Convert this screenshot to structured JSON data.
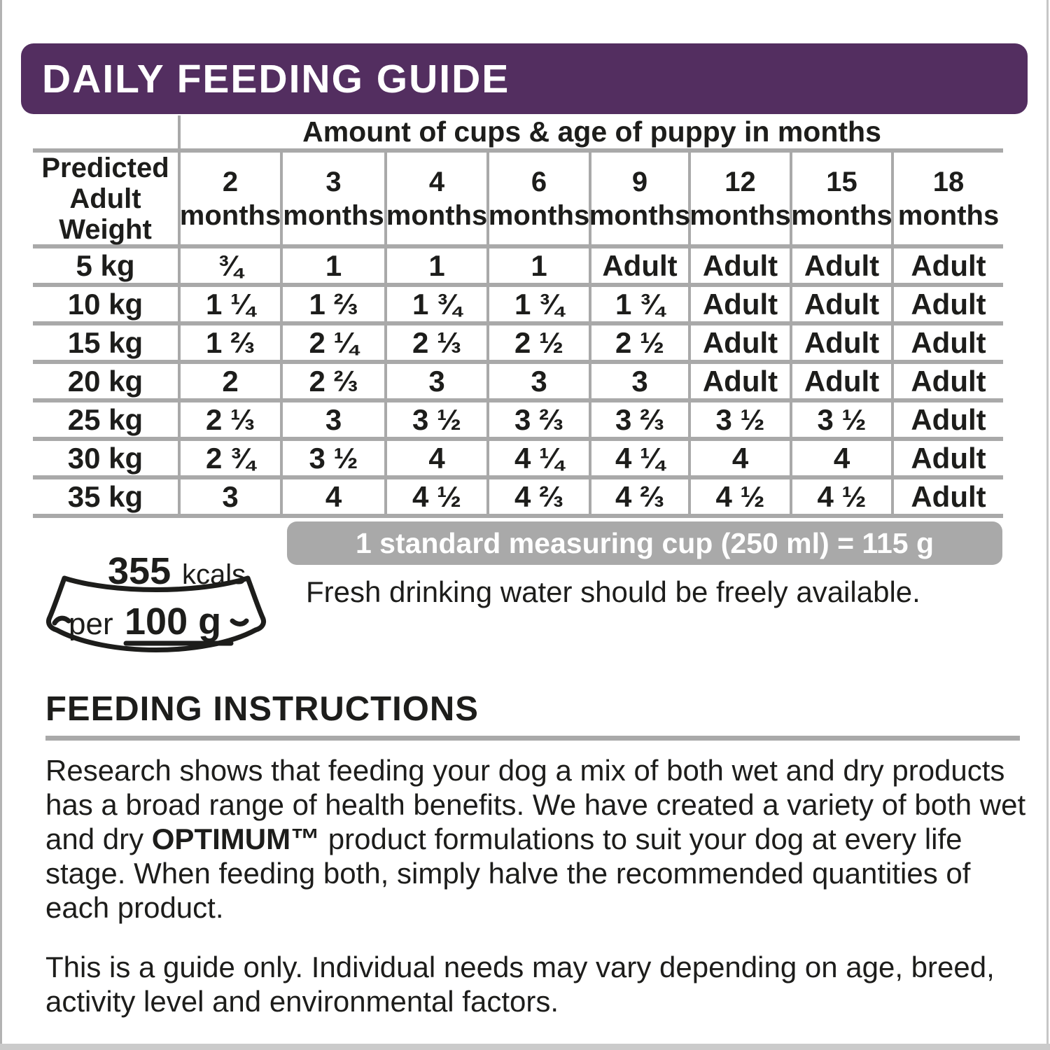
{
  "banner": {
    "title": "DAILY FEEDING GUIDE",
    "bg_color": "#532e60"
  },
  "table": {
    "span_header": "Amount of cups & age of puppy in months",
    "corner_header": "Predicted\nAdult\nWeight",
    "age_columns": [
      "2\nmonths",
      "3\nmonths",
      "4\nmonths",
      "6\nmonths",
      "9\nmonths",
      "12\nmonths",
      "15\nmonths",
      "18\nmonths"
    ],
    "rows": [
      {
        "weight": "5 kg",
        "values": [
          "¾",
          "1",
          "1",
          "1",
          "Adult",
          "Adult",
          "Adult",
          "Adult"
        ]
      },
      {
        "weight": "10 kg",
        "values": [
          "1 ¼",
          "1 ⅔",
          "1 ¾",
          "1 ¾",
          "1 ¾",
          "Adult",
          "Adult",
          "Adult"
        ]
      },
      {
        "weight": "15 kg",
        "values": [
          "1 ⅔",
          "2 ¼",
          "2 ⅓",
          "2 ½",
          "2 ½",
          "Adult",
          "Adult",
          "Adult"
        ]
      },
      {
        "weight": "20 kg",
        "values": [
          "2",
          "2 ⅔",
          "3",
          "3",
          "3",
          "Adult",
          "Adult",
          "Adult"
        ]
      },
      {
        "weight": "25 kg",
        "values": [
          "2 ⅓",
          "3",
          "3 ½",
          "3 ⅔",
          "3 ⅔",
          "3 ½",
          "3 ½",
          "Adult"
        ]
      },
      {
        "weight": "30 kg",
        "values": [
          "2 ¾",
          "3 ½",
          "4",
          "4 ¼",
          "4 ¼",
          "4",
          "4",
          "Adult"
        ]
      },
      {
        "weight": "35 kg",
        "values": [
          "3",
          "4",
          "4 ½",
          "4 ⅔",
          "4 ⅔",
          "4 ½",
          "4 ½",
          "Adult"
        ]
      }
    ],
    "separator_color": "#a9a9a9"
  },
  "cup_note": "1 standard measuring cup (250 ml) = 115 g",
  "water_note": "Fresh drinking water should be freely available.",
  "kcal_badge": {
    "value": "355",
    "unit": "kcals",
    "per": "per",
    "amount": "100 g"
  },
  "instructions": {
    "heading": "FEEDING INSTRUCTIONS",
    "p1_before": "Research shows that feeding your dog a mix of both wet and dry products has a broad range of health benefits. We have created a variety of both wet and dry ",
    "p1_brand": "OPTIMUM™",
    "p1_after": " product formulations to suit your dog at every life stage.  When feeding both, simply halve the recommended quantities of each product.",
    "p2": "This is a guide only.  Individual needs may vary depending on age, breed, activity level and environmental factors."
  },
  "colors": {
    "text": "#1d1d1b",
    "gray": "#a9a9a9",
    "purple": "#532e60"
  }
}
